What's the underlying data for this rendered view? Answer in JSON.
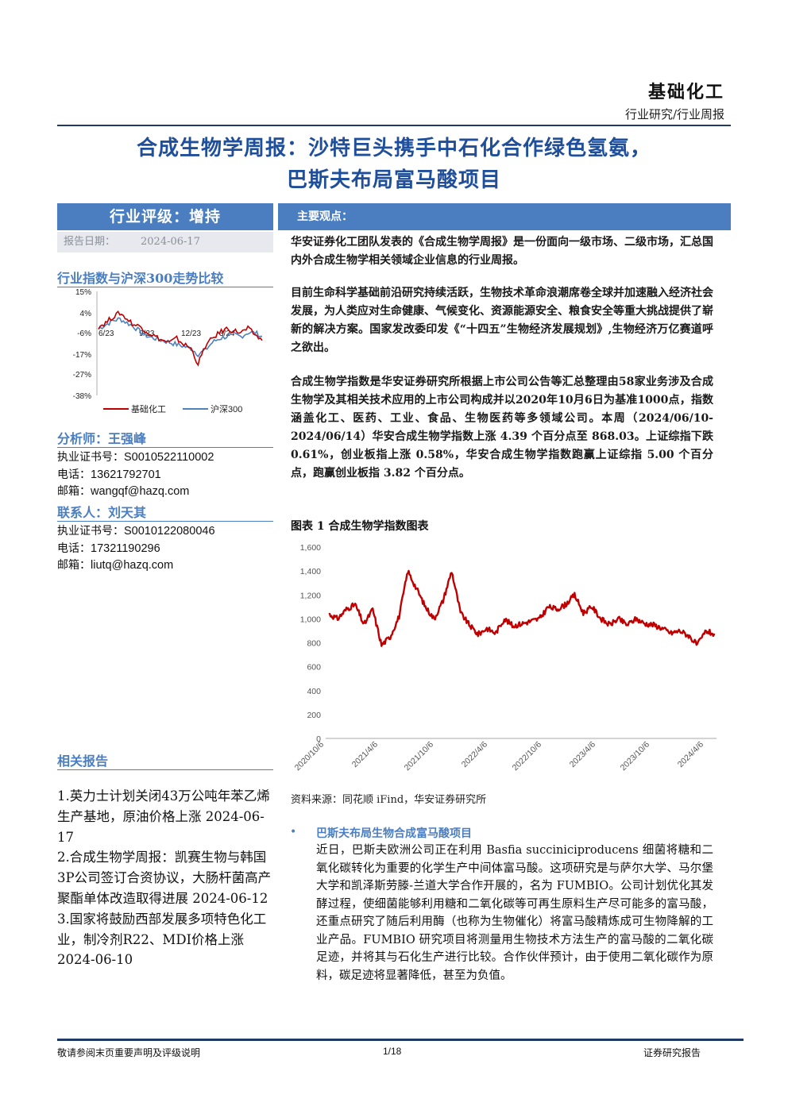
{
  "header": {
    "sector": "基础化工",
    "report_type": "行业研究/行业周报",
    "title_line1": "合成生物学周报：沙特巨头携手中石化合作绿色氢氨，",
    "title_line2": "巴斯夫布局富马酸项目"
  },
  "sidebar": {
    "rating": "行业评级：增持",
    "date_label": "报告日期：",
    "date_value": "2024-06-17",
    "trend_title": "行业指数与沪深300走势比较",
    "analyst_title": "分析师：王强峰",
    "analyst": {
      "cert_label": "执业证书号：",
      "cert": "S0010522110002",
      "phone_label": "电话：",
      "phone": "13621792701",
      "email_label": "邮箱：",
      "email": "wangqf@hazq.com"
    },
    "contact_title": "联系人：刘天其",
    "contact": {
      "cert_label": "执业证书号：",
      "cert": "S0010122080046",
      "phone_label": "电话：",
      "phone": "17321190296",
      "email_label": "邮箱：",
      "email": "liutq@hazq.com"
    },
    "related_title": "相关报告",
    "related_text": "1.英力士计划关闭43万公吨年苯乙烯生产基地，原油价格上涨 2024-06-17\n2.合成生物学周报：凯赛生物与韩国3P公司签订合资协议，大肠杆菌高产聚酯单体改造取得进展 2024-06-12\n3.国家将鼓励西部发展多项特色化工业，制冷剂R22、MDI价格上涨 2024-06-10"
  },
  "main": {
    "section_title": "主要观点：",
    "p1": "华安证券化工团队发表的《合成生物学周报》是一份面向一级市场、二级市场，汇总国内外合成生物学相关领域企业信息的行业周报。",
    "p2": "目前生命科学基础前沿研究持续活跃，生物技术革命浪潮席卷全球并加速融入经济社会发展，为人类应对生命健康、气候变化、资源能源安全、粮食安全等重大挑战提供了崭新的解决方案。国家发改委印发《“十四五”生物经济发展规划》,生物经济万亿赛道呼之欲出。",
    "p3": "合成生物学指数是华安证券研究所根据上市公司公告等汇总整理由58家业务涉及合成生物学及其相关技术应用的上市公司构成并以2020年10月6日为基准1000点，指数涵盖化工、医药、工业、食品、生物医药等多领域公司。本周（2024/06/10-2024/06/14）华安合成生物学指数上涨 4.39 个百分点至 868.03。上证综指下跌 0.61%，创业板指上涨 0.58%，华安合成生物学指数跑赢上证综指 5.00 个百分点，跑赢创业板指 3.82 个百分点。",
    "fig_title": "图表 1 合成生物学指数图表",
    "source": "资料来源：同花顺 iFind，华安证券研究所",
    "bullet_head": "巴斯夫布局生物合成富马酸项目",
    "body": "近日，巴斯夫欧洲公司正在利用 Basfia succiniciproducens 细菌将糖和二氧化碳转化为重要的化学生产中间体富马酸。这项研究是与萨尔大学、马尔堡大学和凯泽斯劳滕-兰道大学合作开展的，名为 FUMBIO。公司计划优化其发酵过程，使细菌能够利用糖和二氧化碳等可再生原料生产尽可能多的富马酸，还重点研究了随后利用酶（也称为生物催化）将富马酸精炼成可生物降解的工业产品。FUMBIO 研究项目将测量用生物技术方法生产的富马酸的二氧化碳足迹，并将其与石化生产进行比较。合作伙伴预计，由于使用二氧化碳作为原料，碳足迹将显著降低，甚至为负值。"
  },
  "footer": {
    "left": "敬请参阅末页重要声明及评级说明",
    "center": "1/18",
    "right": "证券研究报告"
  },
  "chart_data": [
    {
      "type": "line",
      "title": "行业指数与沪深300走势比较",
      "x_ticks": [
        "6/23",
        "9/23",
        "12/23",
        "3/24"
      ],
      "y_ticks": [
        "15%",
        "4%",
        "-6%",
        "-17%",
        "-27%",
        "-38%"
      ],
      "ylim": [
        -38,
        15
      ],
      "series": [
        {
          "name": "基础化工",
          "color": "#c00000",
          "values": [
            -3,
            -1,
            2,
            4,
            1,
            -2,
            -3,
            -6,
            -8,
            -10,
            -11,
            -9,
            -12,
            -14,
            -22,
            -13,
            -9,
            -6,
            -4,
            -5,
            -6,
            -4,
            -7,
            -10
          ]
        },
        {
          "name": "沪深300",
          "color": "#4f81bd",
          "values": [
            -4,
            -2,
            0,
            1,
            -1,
            -3,
            -6,
            -8,
            -9,
            -10,
            -11,
            -12,
            -13,
            -14,
            -17,
            -15,
            -11,
            -9,
            -8,
            -7,
            -8,
            -6,
            -6,
            -8
          ]
        }
      ],
      "legend": "bottom"
    },
    {
      "type": "line",
      "title": "合成生物学指数图表",
      "x_ticks": [
        "2020/10/6",
        "2021/4/6",
        "2021/10/6",
        "2022/4/6",
        "2022/10/6",
        "2023/4/6",
        "2023/10/6",
        "2024/4/6"
      ],
      "y_ticks": [
        "0",
        "200",
        "400",
        "600",
        "800",
        "1,000",
        "1,200",
        "1,400",
        "1,600"
      ],
      "ylim": [
        0,
        1600
      ],
      "series": [
        {
          "name": "合成生物学指数",
          "color": "#c00000",
          "x": [
            "2020/10/6",
            "2020/11/1",
            "2020/12/1",
            "2021/1/1",
            "2021/2/1",
            "2021/3/1",
            "2021/4/1",
            "2021/5/1",
            "2021/6/1",
            "2021/7/1",
            "2021/8/1",
            "2021/9/1",
            "2021/10/1",
            "2021/11/1",
            "2021/12/1",
            "2022/1/1",
            "2022/2/1",
            "2022/3/1",
            "2022/4/1",
            "2022/5/1",
            "2022/6/1",
            "2022/7/1",
            "2022/8/1",
            "2022/9/1",
            "2022/10/1",
            "2022/11/1",
            "2022/12/1",
            "2023/1/1",
            "2023/2/1",
            "2023/3/1",
            "2023/4/1",
            "2023/5/1",
            "2023/6/1",
            "2023/7/1",
            "2023/8/1",
            "2023/9/1",
            "2023/10/1",
            "2023/11/1",
            "2023/12/1",
            "2024/1/1",
            "2024/2/1",
            "2024/3/1",
            "2024/4/1",
            "2024/5/1",
            "2024/6/14"
          ],
          "values": [
            1040,
            1000,
            1080,
            1120,
            950,
            1080,
            780,
            850,
            1020,
            1400,
            1250,
            1100,
            1000,
            1150,
            1400,
            1050,
            950,
            870,
            920,
            880,
            1000,
            940,
            960,
            980,
            1000,
            1100,
            1080,
            1120,
            1200,
            1050,
            1100,
            1000,
            950,
            1000,
            950,
            1000,
            960,
            950,
            920,
            880,
            900,
            860,
            780,
            900,
            868
          ]
        }
      ]
    }
  ]
}
